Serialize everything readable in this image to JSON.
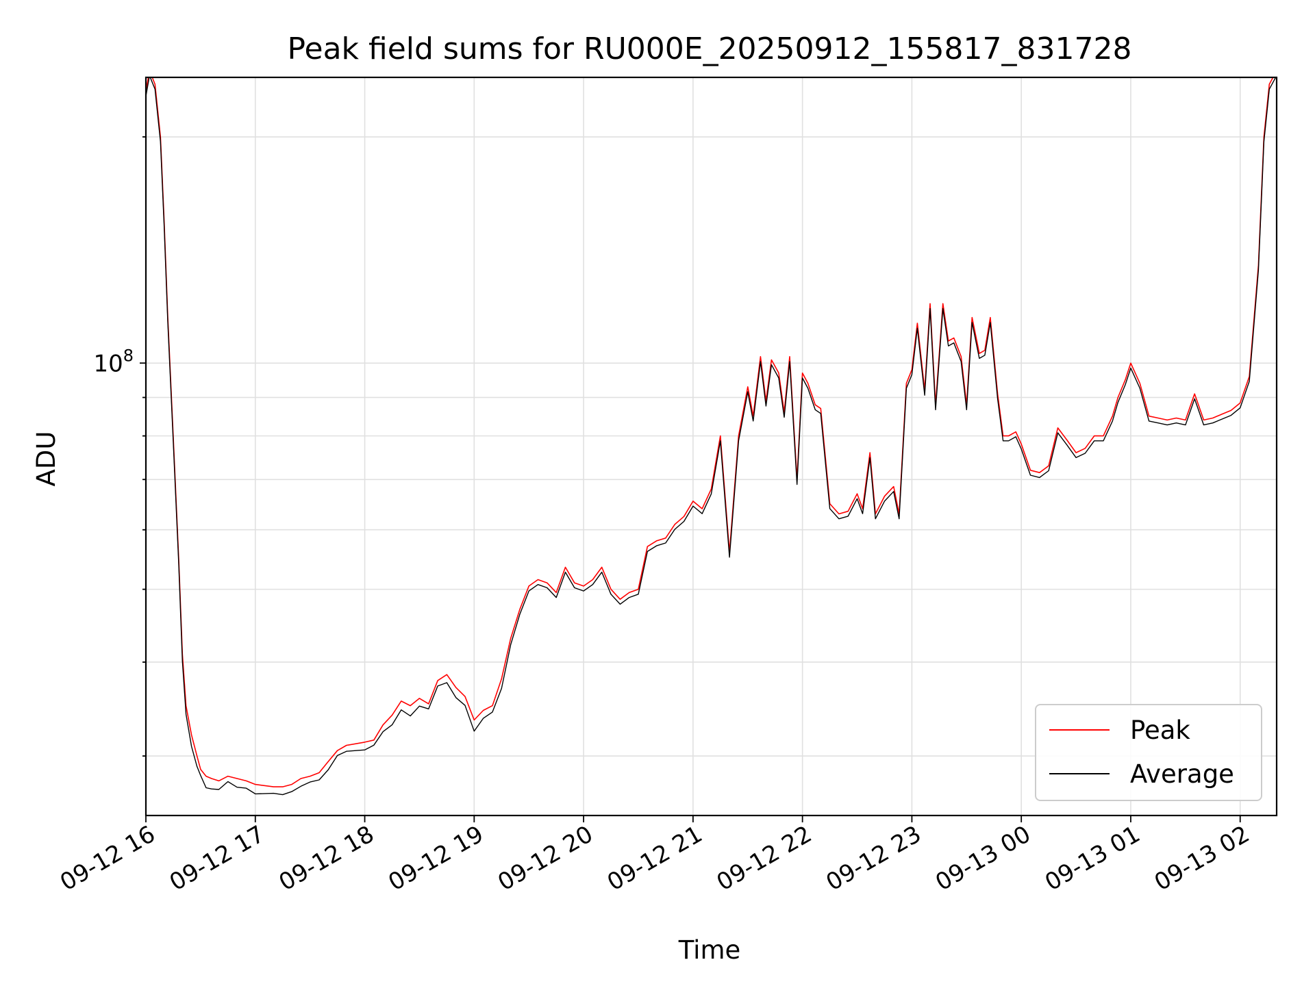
{
  "chart_data": {
    "type": "line",
    "title": "Peak field sums for RU000E_20250912_155817_831728",
    "xlabel": "Time",
    "ylabel": "ADU",
    "y_scale": "log",
    "y_tick_labels": [
      {
        "value": 100000000,
        "label": "10^8"
      }
    ],
    "ylim": [
      25000000,
      240000000
    ],
    "x_tick_labels": [
      "09-12 16",
      "09-12 17",
      "09-12 18",
      "09-12 19",
      "09-12 20",
      "09-12 21",
      "09-12 22",
      "09-12 23",
      "09-13 00",
      "09-13 01",
      "09-13 02"
    ],
    "xlim": [
      "2025-09-12 16:00",
      "2025-09-13 02:20"
    ],
    "grid": true,
    "legend_position": "bottom-right",
    "colors": {
      "peak": "#ff0000",
      "average": "#000000",
      "grid": "#e0e0e0"
    },
    "series": [
      {
        "name": "Peak",
        "color": "#ff0000"
      },
      {
        "name": "Average",
        "color": "#000000"
      }
    ],
    "x": [
      "2025-09-12 16:00",
      "2025-09-12 16:02",
      "2025-09-12 16:05",
      "2025-09-12 16:08",
      "2025-09-12 16:10",
      "2025-09-12 16:12",
      "2025-09-12 16:15",
      "2025-09-12 16:18",
      "2025-09-12 16:20",
      "2025-09-12 16:22",
      "2025-09-12 16:25",
      "2025-09-12 16:28",
      "2025-09-12 16:30",
      "2025-09-12 16:33",
      "2025-09-12 16:36",
      "2025-09-12 16:40",
      "2025-09-12 16:45",
      "2025-09-12 16:50",
      "2025-09-12 16:55",
      "2025-09-12 17:00",
      "2025-09-12 17:10",
      "2025-09-12 17:15",
      "2025-09-12 17:20",
      "2025-09-12 17:25",
      "2025-09-12 17:30",
      "2025-09-12 17:35",
      "2025-09-12 17:40",
      "2025-09-12 17:45",
      "2025-09-12 17:50",
      "2025-09-12 18:00",
      "2025-09-12 18:05",
      "2025-09-12 18:10",
      "2025-09-12 18:15",
      "2025-09-12 18:20",
      "2025-09-12 18:25",
      "2025-09-12 18:30",
      "2025-09-12 18:35",
      "2025-09-12 18:40",
      "2025-09-12 18:45",
      "2025-09-12 18:50",
      "2025-09-12 18:55",
      "2025-09-12 19:00",
      "2025-09-12 19:05",
      "2025-09-12 19:10",
      "2025-09-12 19:15",
      "2025-09-12 19:20",
      "2025-09-12 19:25",
      "2025-09-12 19:30",
      "2025-09-12 19:35",
      "2025-09-12 19:40",
      "2025-09-12 19:45",
      "2025-09-12 19:50",
      "2025-09-12 19:55",
      "2025-09-12 20:00",
      "2025-09-12 20:05",
      "2025-09-12 20:10",
      "2025-09-12 20:15",
      "2025-09-12 20:20",
      "2025-09-12 20:25",
      "2025-09-12 20:30",
      "2025-09-12 20:35",
      "2025-09-12 20:40",
      "2025-09-12 20:45",
      "2025-09-12 20:50",
      "2025-09-12 20:55",
      "2025-09-12 21:00",
      "2025-09-12 21:05",
      "2025-09-12 21:10",
      "2025-09-12 21:15",
      "2025-09-12 21:20",
      "2025-09-12 21:25",
      "2025-09-12 21:30",
      "2025-09-12 21:33",
      "2025-09-12 21:37",
      "2025-09-12 21:40",
      "2025-09-12 21:43",
      "2025-09-12 21:47",
      "2025-09-12 21:50",
      "2025-09-12 21:53",
      "2025-09-12 21:57",
      "2025-09-12 22:00",
      "2025-09-12 22:03",
      "2025-09-12 22:07",
      "2025-09-12 22:10",
      "2025-09-12 22:15",
      "2025-09-12 22:20",
      "2025-09-12 22:25",
      "2025-09-12 22:30",
      "2025-09-12 22:33",
      "2025-09-12 22:37",
      "2025-09-12 22:40",
      "2025-09-12 22:45",
      "2025-09-12 22:50",
      "2025-09-12 22:53",
      "2025-09-12 22:57",
      "2025-09-12 23:00",
      "2025-09-12 23:03",
      "2025-09-12 23:07",
      "2025-09-12 23:10",
      "2025-09-12 23:13",
      "2025-09-12 23:17",
      "2025-09-12 23:20",
      "2025-09-12 23:23",
      "2025-09-12 23:27",
      "2025-09-12 23:30",
      "2025-09-12 23:33",
      "2025-09-12 23:37",
      "2025-09-12 23:40",
      "2025-09-12 23:43",
      "2025-09-12 23:47",
      "2025-09-12 23:50",
      "2025-09-12 23:53",
      "2025-09-12 23:57",
      "2025-09-13 00:00",
      "2025-09-13 00:05",
      "2025-09-13 00:10",
      "2025-09-13 00:15",
      "2025-09-13 00:20",
      "2025-09-13 00:25",
      "2025-09-13 00:30",
      "2025-09-13 00:35",
      "2025-09-13 00:40",
      "2025-09-13 00:45",
      "2025-09-13 00:50",
      "2025-09-13 00:53",
      "2025-09-13 00:57",
      "2025-09-13 01:00",
      "2025-09-13 01:05",
      "2025-09-13 01:10",
      "2025-09-13 01:15",
      "2025-09-13 01:20",
      "2025-09-13 01:25",
      "2025-09-13 01:30",
      "2025-09-13 01:35",
      "2025-09-13 01:40",
      "2025-09-13 01:45",
      "2025-09-13 01:50",
      "2025-09-13 01:55",
      "2025-09-13 02:00",
      "2025-09-13 02:05",
      "2025-09-13 02:10",
      "2025-09-13 02:13",
      "2025-09-13 02:16",
      "2025-09-13 02:20"
    ],
    "peak": [
      230000000,
      245000000,
      235000000,
      200000000,
      155000000,
      115000000,
      80000000,
      55000000,
      41000000,
      35000000,
      32000000,
      30000000,
      28800000,
      28200000,
      28000000,
      27800000,
      28200000,
      28000000,
      27800000,
      27500000,
      27300000,
      27300000,
      27500000,
      28000000,
      28200000,
      28500000,
      29500000,
      30500000,
      31000000,
      31300000,
      31500000,
      33000000,
      34000000,
      35500000,
      35000000,
      35800000,
      35200000,
      37800000,
      38500000,
      37000000,
      36000000,
      33500000,
      34500000,
      35000000,
      38000000,
      43000000,
      47000000,
      50500000,
      51500000,
      51000000,
      49500000,
      53500000,
      51000000,
      50500000,
      51500000,
      53500000,
      50000000,
      48500000,
      49500000,
      50000000,
      57000000,
      58000000,
      58500000,
      61000000,
      62500000,
      65500000,
      64000000,
      68000000,
      80000000,
      56000000,
      80000000,
      93000000,
      85000000,
      102000000,
      89000000,
      101000000,
      97000000,
      86000000,
      102000000,
      70000000,
      97000000,
      94000000,
      88000000,
      87000000,
      65000000,
      63000000,
      63500000,
      67000000,
      64000000,
      76000000,
      63000000,
      66500000,
      68500000,
      63000000,
      94000000,
      98000000,
      113000000,
      92000000,
      120000000,
      88000000,
      120000000,
      107000000,
      108000000,
      102000000,
      88000000,
      115000000,
      103000000,
      104000000,
      115000000,
      91000000,
      80000000,
      80000000,
      81000000,
      78000000,
      72000000,
      71500000,
      73000000,
      82000000,
      79000000,
      76000000,
      77000000,
      80000000,
      80000000,
      85000000,
      90000000,
      95000000,
      100000000,
      94000000,
      85000000,
      84500000,
      84000000,
      84500000,
      84000000,
      91000000,
      84000000,
      84500000,
      85500000,
      86500000,
      88500000,
      96000000,
      135000000,
      200000000,
      235000000,
      245000000
    ]
  },
  "legend": {
    "peak_label": "Peak",
    "average_label": "Average"
  }
}
